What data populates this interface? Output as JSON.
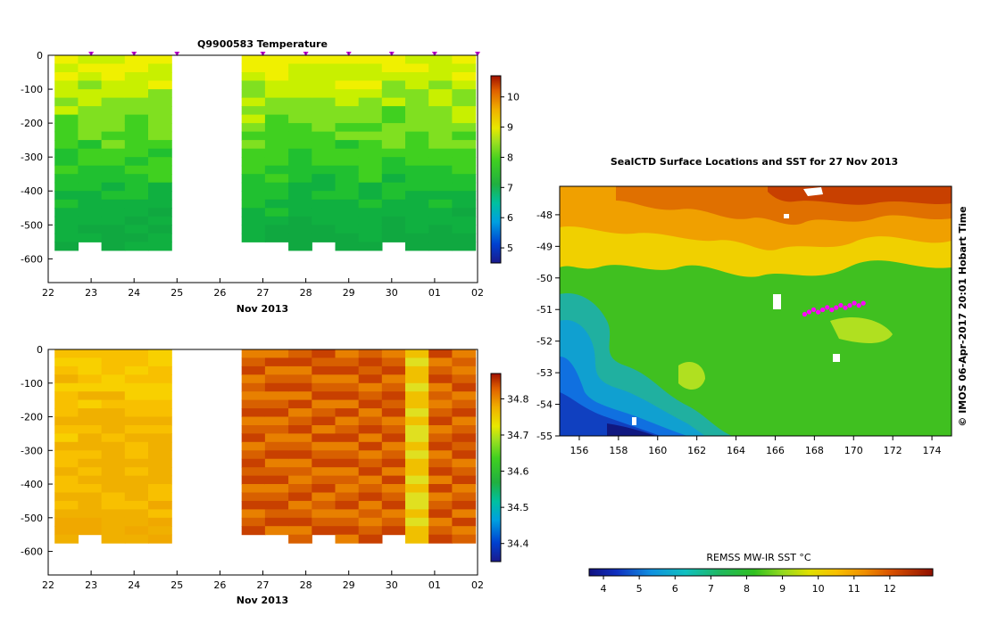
{
  "chart_data": [
    {
      "id": "temperature",
      "type": "heatmap",
      "title": "Q9900583  Temperature",
      "xlabel": "Nov 2013",
      "x_ticks": [
        "22",
        "23",
        "24",
        "25",
        "26",
        "27",
        "28",
        "29",
        "30",
        "01",
        "02"
      ],
      "y_ticks": [
        "0",
        "-100",
        "-200",
        "-300",
        "-400",
        "-500",
        "-600"
      ],
      "ylim": [
        -670,
        0
      ],
      "xlim": [
        22,
        32
      ],
      "colorbar": {
        "range": [
          4.5,
          10.7
        ],
        "ticks": [
          "5",
          "6",
          "7",
          "8",
          "9",
          "10"
        ]
      },
      "markers_x": [
        23,
        24,
        25,
        27,
        28,
        29,
        30,
        31,
        32
      ],
      "marker_color": "#cc00cc",
      "gap": [
        25.2,
        26.3
      ]
    },
    {
      "id": "salinity",
      "type": "heatmap",
      "title": "",
      "xlabel": "Nov 2013",
      "x_ticks": [
        "22",
        "23",
        "24",
        "25",
        "26",
        "27",
        "28",
        "29",
        "30",
        "01",
        "02"
      ],
      "y_ticks": [
        "0",
        "-100",
        "-200",
        "-300",
        "-400",
        "-500",
        "-600"
      ],
      "ylim": [
        -670,
        0
      ],
      "xlim": [
        22,
        32
      ],
      "colorbar": {
        "range": [
          34.35,
          34.87
        ],
        "ticks": [
          "34.4",
          "34.5",
          "34.6",
          "34.7",
          "34.8"
        ]
      },
      "gap": [
        25.2,
        26.3
      ]
    },
    {
      "id": "sst_map",
      "type": "heatmap",
      "title": "SealCTD Surface Locations and SST for 27 Nov 2013",
      "x_ticks": [
        "156",
        "158",
        "160",
        "162",
        "164",
        "166",
        "168",
        "170",
        "172",
        "174"
      ],
      "y_ticks": [
        "-48",
        "-49",
        "-50",
        "-51",
        "-52",
        "-53",
        "-54",
        "-55"
      ],
      "xlim": [
        155,
        175
      ],
      "ylim": [
        -55,
        -47.1
      ],
      "side_label": "© IMOS 06-Apr-2017 20:01 Hobart Time",
      "colorbar": {
        "label": "REMSS MW-IR SST °C",
        "range": [
          3.6,
          13.2
        ],
        "ticks": [
          "4",
          "5",
          "6",
          "7",
          "8",
          "9",
          "10",
          "11",
          "12"
        ]
      },
      "seal_track": {
        "lon": [
          167.5,
          170.5
        ],
        "lat": [
          -51.1,
          -50.8
        ],
        "color": "#ff00ff"
      }
    }
  ]
}
